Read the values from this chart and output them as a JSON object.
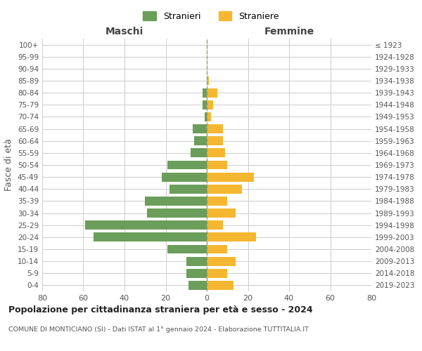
{
  "age_groups": [
    "0-4",
    "5-9",
    "10-14",
    "15-19",
    "20-24",
    "25-29",
    "30-34",
    "35-39",
    "40-44",
    "45-49",
    "50-54",
    "55-59",
    "60-64",
    "65-69",
    "70-74",
    "75-79",
    "80-84",
    "85-89",
    "90-94",
    "95-99",
    "100+"
  ],
  "birth_years": [
    "2019-2023",
    "2014-2018",
    "2009-2013",
    "2004-2008",
    "1999-2003",
    "1994-1998",
    "1989-1993",
    "1984-1988",
    "1979-1983",
    "1974-1978",
    "1969-1973",
    "1964-1968",
    "1959-1963",
    "1954-1958",
    "1949-1953",
    "1944-1948",
    "1939-1943",
    "1934-1938",
    "1929-1933",
    "1924-1928",
    "≤ 1923"
  ],
  "maschi": [
    9,
    10,
    10,
    19,
    55,
    59,
    29,
    30,
    18,
    22,
    19,
    8,
    6,
    7,
    1,
    2,
    2,
    0,
    0,
    0,
    0
  ],
  "femmine": [
    13,
    10,
    14,
    10,
    24,
    8,
    14,
    10,
    17,
    23,
    10,
    9,
    8,
    8,
    2,
    3,
    5,
    1,
    0,
    0,
    0
  ],
  "color_maschi": "#6a9e5a",
  "color_femmine": "#f5b731",
  "title": "Popolazione per cittadinanza straniera per età e sesso - 2024",
  "subtitle": "COMUNE DI MONTICIANO (SI) - Dati ISTAT al 1° gennaio 2024 - Elaborazione TUTTITALIA.IT",
  "xlabel_left": "Maschi",
  "xlabel_right": "Femmine",
  "ylabel_left": "Fasce di età",
  "legend_maschi": "Stranieri",
  "legend_femmine": "Straniere",
  "xlim": 80,
  "background_color": "#ffffff",
  "grid_color": "#cccccc"
}
